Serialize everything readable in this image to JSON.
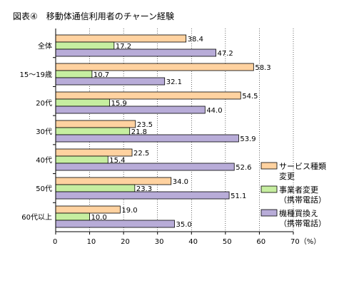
{
  "colors": {
    "series1_fill": "#ffd2a0",
    "series2_fill": "#c6eea0",
    "series3_fill": "#b8acd8",
    "bar_stroke": "#000000",
    "grid": "#000000"
  },
  "chart_data": {
    "type": "bar",
    "orientation": "horizontal",
    "title": "図表④　移動体通信利用者のチャーン経験",
    "categories": [
      "全体",
      "15～19歳",
      "20代",
      "30代",
      "40代",
      "50代",
      "60代以上"
    ],
    "series": [
      {
        "name": "サービス種類変更",
        "legend_lines": [
          "サービス種類",
          "変更"
        ],
        "values": [
          38.4,
          58.3,
          54.5,
          23.5,
          22.5,
          34.0,
          19.0
        ],
        "labels": [
          "38.4",
          "58.3",
          "54.5",
          "23.5",
          "22.5",
          "34.0",
          "19.0"
        ]
      },
      {
        "name": "事業者変更（携帯電話）",
        "legend_lines": [
          "事業者変更",
          "（携帯電話）"
        ],
        "values": [
          17.2,
          10.7,
          15.9,
          21.8,
          15.4,
          23.3,
          10.0
        ],
        "labels": [
          "17.2",
          "10.7",
          "15.9",
          "21.8",
          "15.4",
          "23.3",
          "10.0"
        ]
      },
      {
        "name": "機種買換え（携帯電話）",
        "legend_lines": [
          "機種買換え",
          "（携帯電話）"
        ],
        "values": [
          47.2,
          32.1,
          44.0,
          53.9,
          52.6,
          51.1,
          35.0
        ],
        "labels": [
          "47.2",
          "32.1",
          "44.0",
          "53.9",
          "52.6",
          "51.1",
          "35.0"
        ]
      }
    ],
    "xlim": [
      0,
      70
    ],
    "xticks": [
      "0",
      "10",
      "20",
      "30",
      "40",
      "50",
      "60",
      "70（%）"
    ],
    "grid": "vertical",
    "legend_position": "right"
  }
}
